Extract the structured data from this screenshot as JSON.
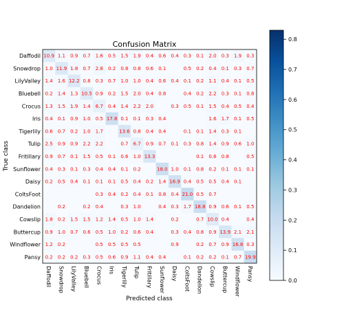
{
  "chart_data": {
    "type": "heatmap",
    "title": "Confusion Matrix",
    "xlabel": "Predicted class",
    "ylabel": "True class",
    "classes": [
      "Daffodil",
      "Snowdrop",
      "LilyValley",
      "Bluebell",
      "Crocus",
      "Iris",
      "Tigerlily",
      "Tulip",
      "Fritillary",
      "Sunflower",
      "Daisy",
      "ColtsFoot",
      "Dandelion",
      "Cowslip",
      "Buttercup",
      "Windflower",
      "Pansy"
    ],
    "cells": [
      [
        "10.9",
        "1.1",
        "0.9",
        "0.7",
        "1.6",
        "0.5",
        "1.5",
        "1.9",
        "0.4",
        "0.6",
        "0.4",
        "0.3",
        "0.1",
        "2.0",
        "0.3",
        "1.9",
        "0.3"
      ],
      [
        "1.0",
        "11.9",
        "1.8",
        "0.7",
        "2.8",
        "0.2",
        "0.8",
        "0.8",
        "0.6",
        "0.1",
        "",
        "0.5",
        "0.2",
        "0.4",
        "0.1",
        "0.3",
        "0.7"
      ],
      [
        "1.4",
        "1.6",
        "12.2",
        "0.8",
        "0.3",
        "0.7",
        "1.0",
        "1.0",
        "0.4",
        "0.6",
        "0.4",
        "0.1",
        "0.2",
        "1.1",
        "0.4",
        "0.1",
        "0.5"
      ],
      [
        "0.2",
        "1.4",
        "1.3",
        "10.5",
        "0.9",
        "0.2",
        "1.5",
        "2.0",
        "0.4",
        "0.8",
        "",
        "0.4",
        "0.2",
        "2.2",
        "0.3",
        "0.1",
        "0.8"
      ],
      [
        "1.3",
        "1.5",
        "1.9",
        "1.4",
        "6.7",
        "0.4",
        "1.4",
        "2.2",
        "2.0",
        "",
        "0.3",
        "0.5",
        "0.1",
        "1.5",
        "0.4",
        "0.5",
        "0.4"
      ],
      [
        "0.4",
        "0.1",
        "0.9",
        "1.0",
        "0.5",
        "17.8",
        "0.1",
        "0.1",
        "0.3",
        "0.4",
        "",
        "",
        "",
        "1.6",
        "1.7",
        "0.1",
        "0.5"
      ],
      [
        "0.6",
        "0.7",
        "0.2",
        "1.0",
        "1.7",
        "",
        "13.6",
        "0.8",
        "0.4",
        "0.4",
        "",
        "0.1",
        "0.1",
        "1.4",
        "0.3",
        "0.1",
        ""
      ],
      [
        "2.5",
        "0.9",
        "0.9",
        "2.2",
        "2.2",
        "",
        "0.7",
        "6.7",
        "0.9",
        "0.7",
        "0.1",
        "0.3",
        "0.8",
        "1.4",
        "0.9",
        "0.6",
        "1.0"
      ],
      [
        "0.9",
        "0.7",
        "0.1",
        "1.5",
        "0.5",
        "0.1",
        "0.6",
        "1.0",
        "13.3",
        "",
        "",
        "",
        "0.1",
        "0.6",
        "0.8",
        "",
        "0.5"
      ],
      [
        "0.4",
        "0.3",
        "0.1",
        "0.3",
        "0.4",
        "0.4",
        "0.1",
        "0.2",
        "",
        "18.0",
        "1.0",
        "0.1",
        "0.8",
        "0.2",
        "0.1",
        "0.1",
        "0.1"
      ],
      [
        "0.2",
        "0.5",
        "0.4",
        "0.1",
        "0.1",
        "0.1",
        "0.5",
        "0.4",
        "0.2",
        "1.4",
        "16.9",
        "0.4",
        "0.5",
        "0.5",
        "0.4",
        "0.1",
        ""
      ],
      [
        "",
        "",
        "",
        "",
        "0.3",
        "0.4",
        "0.2",
        "0.4",
        "0.1",
        "0.8",
        "0.4",
        "21.0",
        "0.5",
        "0.7",
        "",
        "",
        ""
      ],
      [
        "",
        "0.2",
        "",
        "0.2",
        "0.4",
        "",
        "0.3",
        "1.0",
        "",
        "0.4",
        "0.3",
        "1.7",
        "18.8",
        "0.9",
        "0.6",
        "0.1",
        "0.5"
      ],
      [
        "1.8",
        "0.2",
        "1.5",
        "1.5",
        "1.2",
        "1.4",
        "0.5",
        "1.0",
        "1.4",
        "",
        "0.2",
        "",
        "0.7",
        "10.0",
        "0.4",
        "",
        "0.4"
      ],
      [
        "0.9",
        "1.0",
        "0.7",
        "0.6",
        "0.5",
        "1.0",
        "0.2",
        "0.6",
        "0.4",
        "",
        "0.3",
        "0.4",
        "0.8",
        "0.9",
        "13.9",
        "2.1",
        "2.1"
      ],
      [
        "1.2",
        "0.2",
        "",
        "",
        "0.5",
        "0.5",
        "0.5",
        "0.5",
        "",
        "",
        "0.9",
        "",
        "0.2",
        "0.7",
        "0.9",
        "16.8",
        "0.3"
      ],
      [
        "0.2",
        "0.2",
        "0.2",
        "0.3",
        "0.5",
        "0.6",
        "0.9",
        "1.1",
        "0.4",
        "0.4",
        "",
        "0.1",
        "0.2",
        "0.2",
        "0.1",
        "0.7",
        "19.9"
      ]
    ],
    "color_scale": {
      "ticks": [
        "0.0",
        "0.1",
        "0.2",
        "0.3",
        "0.4",
        "0.5",
        "0.6",
        "0.7",
        "0.8"
      ],
      "vmin": 0.0,
      "vmax": 0.83,
      "colormap": "Blues"
    },
    "annotation_color": "#ff0000"
  }
}
